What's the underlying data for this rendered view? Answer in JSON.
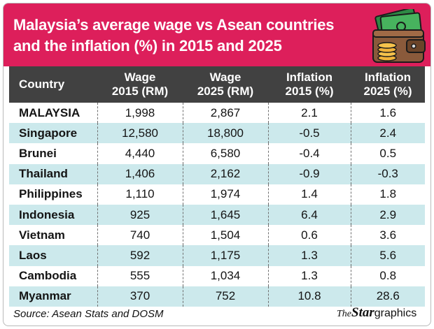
{
  "header": {
    "title": "Malaysia’s average wage vs Asean countries and the inflation (%) in 2015 and 2025",
    "accent_color": "#dd1f5b",
    "header_row_color": "#414141",
    "stripe_color": "#cce9ec",
    "icon": "wallet-icon"
  },
  "chart_data": {
    "type": "table",
    "title": "Malaysia’s average wage vs Asean countries and the inflation (%) in 2015 and 2025",
    "columns": [
      "Country",
      "Wage 2015 (RM)",
      "Wage 2025 (RM)",
      "Inflation 2015 (%)",
      "Inflation 2025 (%)"
    ],
    "column_lines": [
      [
        "Country"
      ],
      [
        "Wage",
        "2015 (RM)"
      ],
      [
        "Wage",
        "2025 (RM)"
      ],
      [
        "Inflation",
        "2015 (%)"
      ],
      [
        "Inflation",
        "2025 (%)"
      ]
    ],
    "rows": [
      [
        "MALAYSIA",
        "1,998",
        "2,867",
        "2.1",
        "1.6"
      ],
      [
        "Singapore",
        "12,580",
        "18,800",
        "-0.5",
        "2.4"
      ],
      [
        "Brunei",
        "4,440",
        "6,580",
        "-0.4",
        "0.5"
      ],
      [
        "Thailand",
        "1,406",
        "2,162",
        "-0.9",
        "-0.3"
      ],
      [
        "Philippines",
        "1,110",
        "1,974",
        "1.4",
        "1.8"
      ],
      [
        "Indonesia",
        "925",
        "1,645",
        "6.4",
        "2.9"
      ],
      [
        "Vietnam",
        "740",
        "1,504",
        "0.6",
        "3.6"
      ],
      [
        "Laos",
        "592",
        "1,175",
        "1.3",
        "5.6"
      ],
      [
        "Cambodia",
        "555",
        "1,034",
        "1.3",
        "0.8"
      ],
      [
        "Myanmar",
        "370",
        "752",
        "10.8",
        "28.6"
      ]
    ]
  },
  "footer": {
    "source": "Source: Asean Stats and DOSM",
    "brand_the": "The",
    "brand_star": "Star",
    "brand_graphics": "graphics"
  }
}
